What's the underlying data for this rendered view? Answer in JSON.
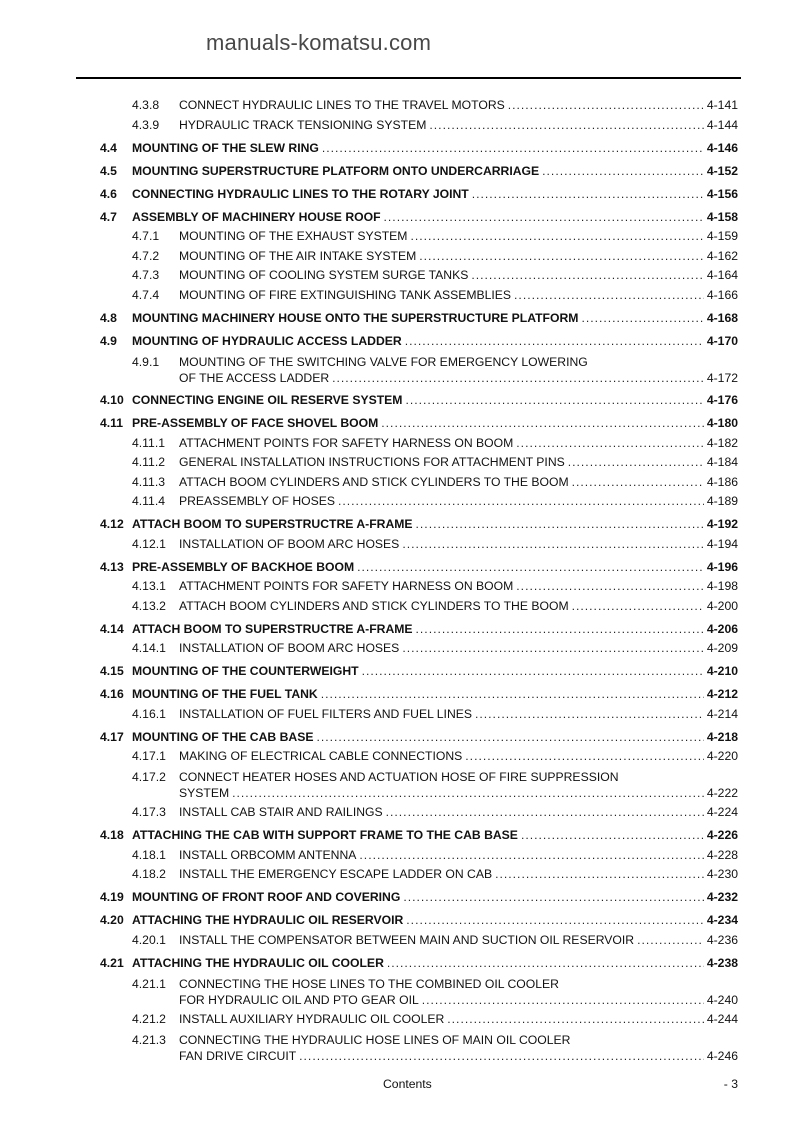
{
  "toc": [
    {
      "level": "sub",
      "num": "4.3.8",
      "lines": [
        "CONNECT HYDRAULIC LINES TO THE TRAVEL MOTORS"
      ],
      "page": "4-141"
    },
    {
      "level": "sub",
      "num": "4.3.9",
      "lines": [
        "HYDRAULIC TRACK TENSIONING SYSTEM"
      ],
      "page": "4-144"
    },
    {
      "level": "main",
      "num": "4.4",
      "lines": [
        "MOUNTING OF THE SLEW RING"
      ],
      "page": "4-146"
    },
    {
      "level": "main",
      "num": "4.5",
      "lines": [
        "MOUNTING SUPERSTRUCTURE PLATFORM ONTO UNDERCARRIAGE"
      ],
      "page": "4-152"
    },
    {
      "level": "main",
      "num": "4.6",
      "lines": [
        "CONNECTING HYDRAULIC LINES TO THE ROTARY JOINT"
      ],
      "page": "4-156"
    },
    {
      "level": "main",
      "num": "4.7",
      "lines": [
        "ASSEMBLY OF MACHINERY HOUSE ROOF"
      ],
      "page": "4-158"
    },
    {
      "level": "sub",
      "num": "4.7.1",
      "lines": [
        "MOUNTING OF THE EXHAUST SYSTEM"
      ],
      "page": "4-159"
    },
    {
      "level": "sub",
      "num": "4.7.2",
      "lines": [
        "MOUNTING OF THE AIR INTAKE SYSTEM"
      ],
      "page": "4-162"
    },
    {
      "level": "sub",
      "num": "4.7.3",
      "lines": [
        "MOUNTING OF COOLING SYSTEM SURGE TANKS"
      ],
      "page": "4-164"
    },
    {
      "level": "sub",
      "num": "4.7.4",
      "lines": [
        "MOUNTING OF FIRE EXTINGUISHING TANK ASSEMBLIES"
      ],
      "page": "4-166"
    },
    {
      "level": "main",
      "num": "4.8",
      "lines": [
        "MOUNTING MACHINERY HOUSE ONTO THE SUPERSTRUCTURE PLATFORM"
      ],
      "page": "4-168"
    },
    {
      "level": "main",
      "num": "4.9",
      "lines": [
        "MOUNTING OF HYDRAULIC ACCESS LADDER"
      ],
      "page": "4-170"
    },
    {
      "level": "sub",
      "num": "4.9.1",
      "lines": [
        "MOUNTING OF THE SWITCHING VALVE FOR EMERGENCY LOWERING",
        "OF THE ACCESS LADDER"
      ],
      "page": "4-172"
    },
    {
      "level": "main",
      "num": "4.10",
      "lines": [
        "CONNECTING ENGINE OIL RESERVE SYSTEM"
      ],
      "page": "4-176"
    },
    {
      "level": "main",
      "num": "4.11",
      "lines": [
        "PRE-ASSEMBLY OF FACE SHOVEL BOOM"
      ],
      "page": "4-180"
    },
    {
      "level": "sub",
      "num": "4.11.1",
      "lines": [
        "ATTACHMENT POINTS FOR SAFETY HARNESS ON BOOM"
      ],
      "page": "4-182"
    },
    {
      "level": "sub",
      "num": "4.11.2",
      "lines": [
        "GENERAL INSTALLATION INSTRUCTIONS FOR ATTACHMENT PINS"
      ],
      "page": "4-184"
    },
    {
      "level": "sub",
      "num": "4.11.3",
      "lines": [
        "ATTACH BOOM CYLINDERS AND STICK CYLINDERS TO THE BOOM"
      ],
      "page": "4-186"
    },
    {
      "level": "sub",
      "num": "4.11.4",
      "lines": [
        "PREASSEMBLY OF HOSES"
      ],
      "page": "4-189"
    },
    {
      "level": "main",
      "num": "4.12",
      "lines": [
        "ATTACH BOOM TO SUPERSTRUCTRE A-FRAME"
      ],
      "page": "4-192"
    },
    {
      "level": "sub",
      "num": "4.12.1",
      "lines": [
        "INSTALLATION OF BOOM ARC HOSES"
      ],
      "page": "4-194"
    },
    {
      "level": "main",
      "num": "4.13",
      "lines": [
        "PRE-ASSEMBLY OF BACKHOE BOOM"
      ],
      "page": "4-196"
    },
    {
      "level": "sub",
      "num": "4.13.1",
      "lines": [
        "ATTACHMENT POINTS FOR SAFETY HARNESS ON BOOM"
      ],
      "page": "4-198"
    },
    {
      "level": "sub",
      "num": "4.13.2",
      "lines": [
        "ATTACH BOOM CYLINDERS AND STICK CYLINDERS TO THE BOOM"
      ],
      "page": "4-200"
    },
    {
      "level": "main",
      "num": "4.14",
      "lines": [
        "ATTACH BOOM TO SUPERSTRUCTRE A-FRAME"
      ],
      "page": "4-206"
    },
    {
      "level": "sub",
      "num": "4.14.1",
      "lines": [
        "INSTALLATION OF BOOM ARC HOSES"
      ],
      "page": "4-209"
    },
    {
      "level": "main",
      "num": "4.15",
      "lines": [
        "MOUNTING OF THE COUNTERWEIGHT"
      ],
      "page": "4-210"
    },
    {
      "level": "main",
      "num": "4.16",
      "lines": [
        "MOUNTING OF THE FUEL TANK"
      ],
      "page": "4-212"
    },
    {
      "level": "sub",
      "num": "4.16.1",
      "lines": [
        "INSTALLATION OF FUEL FILTERS AND FUEL LINES"
      ],
      "page": "4-214"
    },
    {
      "level": "main",
      "num": "4.17",
      "lines": [
        "MOUNTING OF THE CAB BASE"
      ],
      "page": "4-218"
    },
    {
      "level": "sub",
      "num": "4.17.1",
      "lines": [
        "MAKING OF ELECTRICAL CABLE CONNECTIONS"
      ],
      "page": "4-220"
    },
    {
      "level": "sub",
      "num": "4.17.2",
      "lines": [
        "CONNECT HEATER HOSES AND ACTUATION HOSE OF FIRE SUPPRESSION",
        "SYSTEM"
      ],
      "page": "4-222"
    },
    {
      "level": "sub",
      "num": "4.17.3",
      "lines": [
        "INSTALL CAB STAIR AND RAILINGS"
      ],
      "page": "4-224"
    },
    {
      "level": "main",
      "num": "4.18",
      "lines": [
        "ATTACHING THE CAB WITH SUPPORT FRAME TO THE CAB BASE"
      ],
      "page": "4-226"
    },
    {
      "level": "sub",
      "num": "4.18.1",
      "lines": [
        "INSTALL ORBCOMM ANTENNA"
      ],
      "page": "4-228"
    },
    {
      "level": "sub",
      "num": "4.18.2",
      "lines": [
        "INSTALL THE EMERGENCY ESCAPE LADDER ON CAB"
      ],
      "page": "4-230"
    },
    {
      "level": "main",
      "num": "4.19",
      "lines": [
        "MOUNTING OF FRONT ROOF AND COVERING"
      ],
      "page": "4-232"
    },
    {
      "level": "main",
      "num": "4.20",
      "lines": [
        "ATTACHING THE HYDRAULIC OIL RESERVOIR"
      ],
      "page": "4-234"
    },
    {
      "level": "sub",
      "num": "4.20.1",
      "lines": [
        "INSTALL THE COMPENSATOR BETWEEN MAIN AND SUCTION OIL RESERVOIR"
      ],
      "page": "4-236"
    },
    {
      "level": "main",
      "num": "4.21",
      "lines": [
        "ATTACHING THE HYDRAULIC OIL COOLER"
      ],
      "page": "4-238"
    },
    {
      "level": "sub",
      "num": "4.21.1",
      "lines": [
        "CONNECTING THE HOSE LINES TO THE COMBINED OIL COOLER",
        "FOR HYDRAULIC OIL AND PTO GEAR OIL"
      ],
      "page": "4-240"
    },
    {
      "level": "sub",
      "num": "4.21.2",
      "lines": [
        "INSTALL AUXILIARY HYDRAULIC OIL COOLER"
      ],
      "page": "4-244"
    },
    {
      "level": "sub",
      "num": "4.21.3",
      "lines": [
        "CONNECTING THE HYDRAULIC HOSE LINES OF MAIN OIL COOLER",
        "FAN DRIVE CIRCUIT"
      ],
      "page": "4-246"
    }
  ],
  "footer": {
    "section": "Contents",
    "page": "- 3"
  },
  "watermark": "manuals-komatsu.com"
}
